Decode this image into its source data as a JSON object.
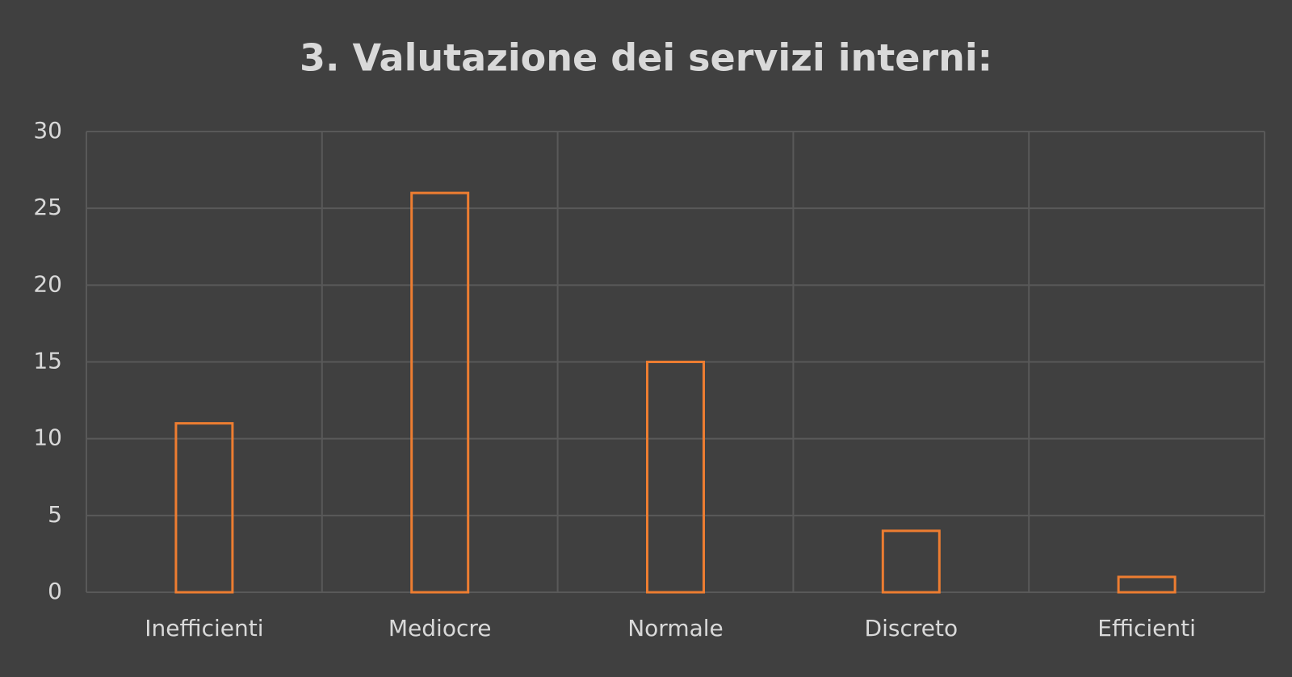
{
  "chart_data": {
    "type": "bar",
    "title": "3. Valutazione dei servizi interni:",
    "categories": [
      "Inefficienti",
      "Mediocre",
      "Normale",
      "Discreto",
      "Efficienti"
    ],
    "values": [
      11,
      26,
      15,
      4,
      1
    ],
    "color": "#ed7d31",
    "ylim": [
      0,
      30
    ],
    "yticks": [
      0,
      5,
      10,
      15,
      20,
      25,
      30
    ],
    "grid": true
  }
}
